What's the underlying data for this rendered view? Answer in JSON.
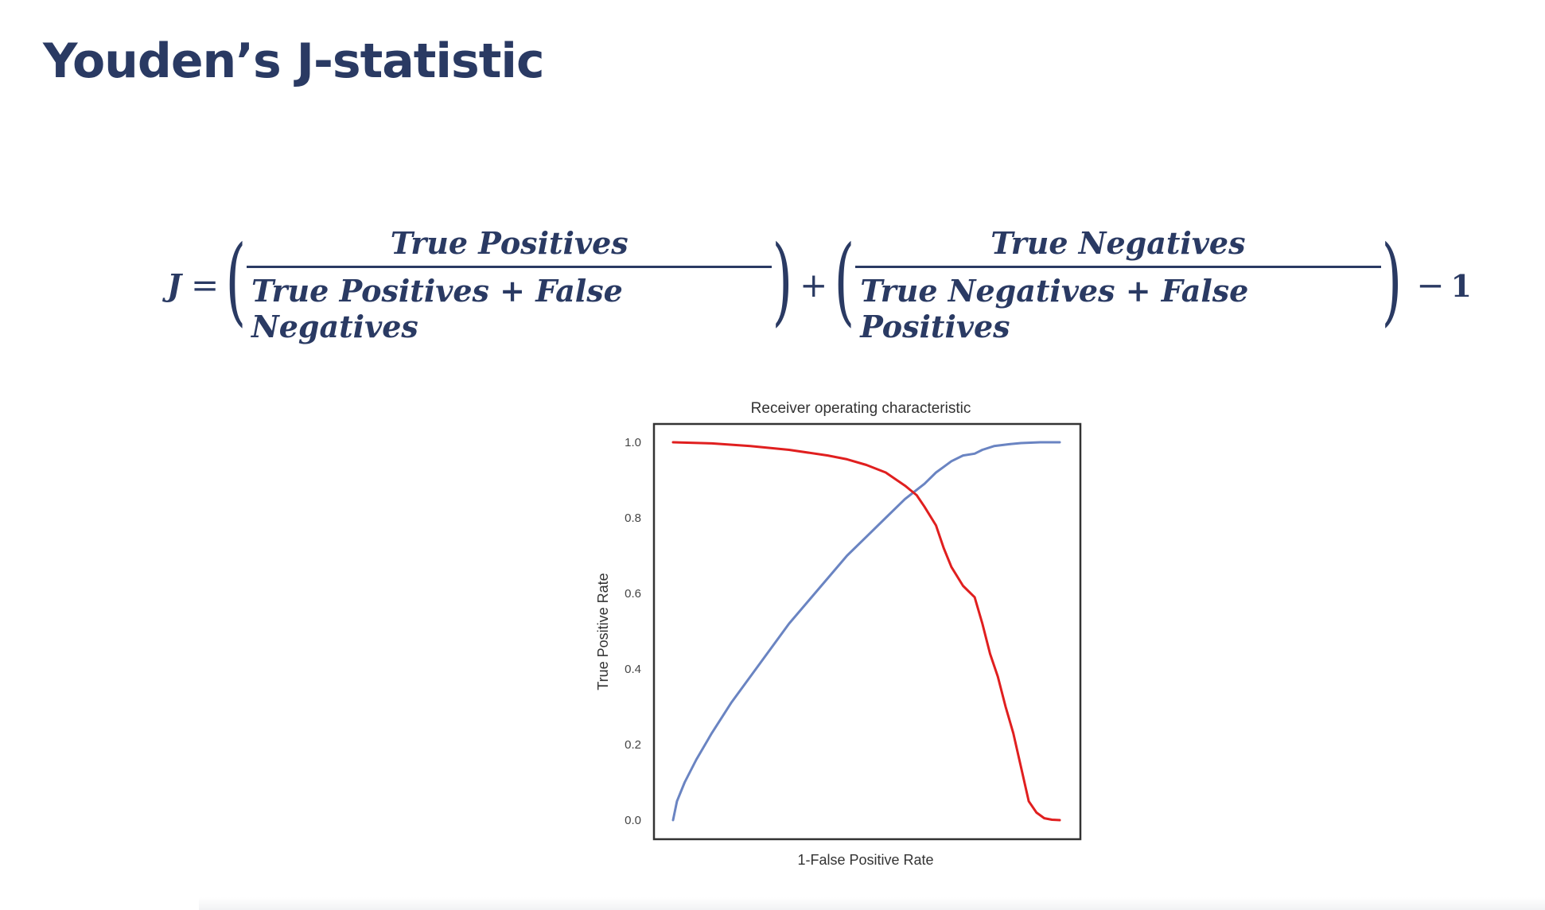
{
  "slide": {
    "title": "Youden’s J-statistic"
  },
  "formula": {
    "lhs": "J",
    "equals": "=",
    "term1_numerator": "True Positives",
    "term1_denominator": "True Positives + False Negatives",
    "plus": "+",
    "term2_numerator": "True Negatives",
    "term2_denominator": "True Negatives + False Positives",
    "minus": "−",
    "one": "1"
  },
  "chart_data": {
    "type": "line",
    "title": "Receiver operating characteristic",
    "xlabel": "1-False Positive Rate",
    "ylabel": "True Positive Rate",
    "xlim": [
      0,
      1
    ],
    "ylim": [
      0,
      1
    ],
    "x_ticks_shown": false,
    "y_ticks": [
      "0.0",
      "0.2",
      "0.4",
      "0.6",
      "0.8",
      "1.0"
    ],
    "grid": false,
    "legend": "none",
    "series": [
      {
        "color": "#6a84c2",
        "x": [
          0.0,
          0.01,
          0.03,
          0.06,
          0.1,
          0.15,
          0.2,
          0.25,
          0.3,
          0.35,
          0.4,
          0.45,
          0.5,
          0.55,
          0.6,
          0.65,
          0.68,
          0.7,
          0.72,
          0.75,
          0.78,
          0.8,
          0.83,
          0.87,
          0.9,
          0.95,
          1.0
        ],
        "y": [
          0.0,
          0.05,
          0.1,
          0.16,
          0.23,
          0.31,
          0.38,
          0.45,
          0.52,
          0.58,
          0.64,
          0.7,
          0.75,
          0.8,
          0.85,
          0.89,
          0.92,
          0.935,
          0.95,
          0.965,
          0.97,
          0.98,
          0.99,
          0.995,
          0.998,
          1.0,
          1.0
        ]
      },
      {
        "color": "#e01f1f",
        "x": [
          0.0,
          0.1,
          0.2,
          0.3,
          0.4,
          0.45,
          0.5,
          0.55,
          0.6,
          0.63,
          0.65,
          0.68,
          0.7,
          0.72,
          0.75,
          0.78,
          0.8,
          0.82,
          0.84,
          0.86,
          0.88,
          0.9,
          0.92,
          0.94,
          0.96,
          0.98,
          1.0
        ],
        "y": [
          1.0,
          0.997,
          0.99,
          0.98,
          0.965,
          0.955,
          0.94,
          0.92,
          0.885,
          0.86,
          0.83,
          0.78,
          0.72,
          0.67,
          0.62,
          0.59,
          0.52,
          0.44,
          0.38,
          0.3,
          0.23,
          0.14,
          0.05,
          0.02,
          0.005,
          0.001,
          0.0
        ]
      }
    ]
  }
}
